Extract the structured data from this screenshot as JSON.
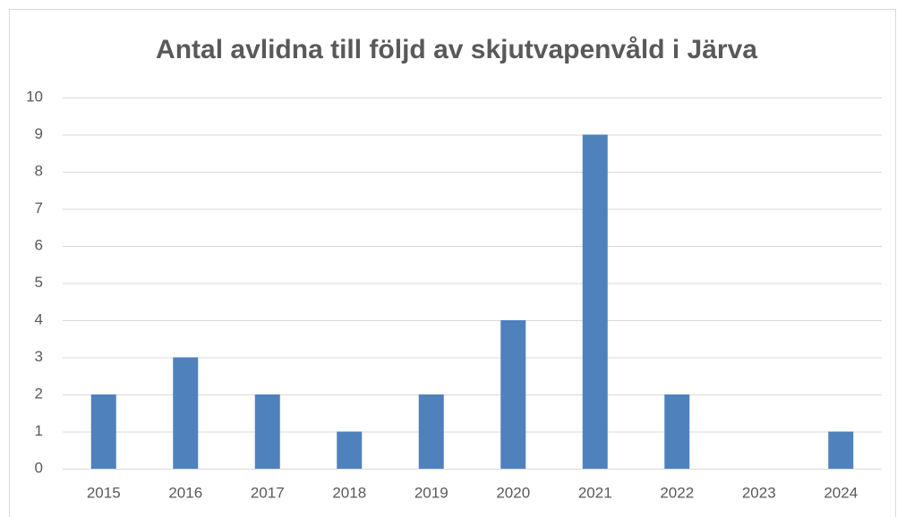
{
  "chart_data": {
    "type": "bar",
    "title": "Antal avlidna till följd av skjutvapenvåld i Järva",
    "categories": [
      "2015",
      "2016",
      "2017",
      "2018",
      "2019",
      "2020",
      "2021",
      "2022",
      "2023",
      "2024"
    ],
    "values": [
      2,
      3,
      2,
      1,
      2,
      4,
      9,
      2,
      0,
      1
    ],
    "color": "#4f81bd",
    "ylim": [
      0,
      10
    ],
    "yticks": [
      0,
      1,
      2,
      3,
      4,
      5,
      6,
      7,
      8,
      9,
      10
    ],
    "grid": true
  }
}
